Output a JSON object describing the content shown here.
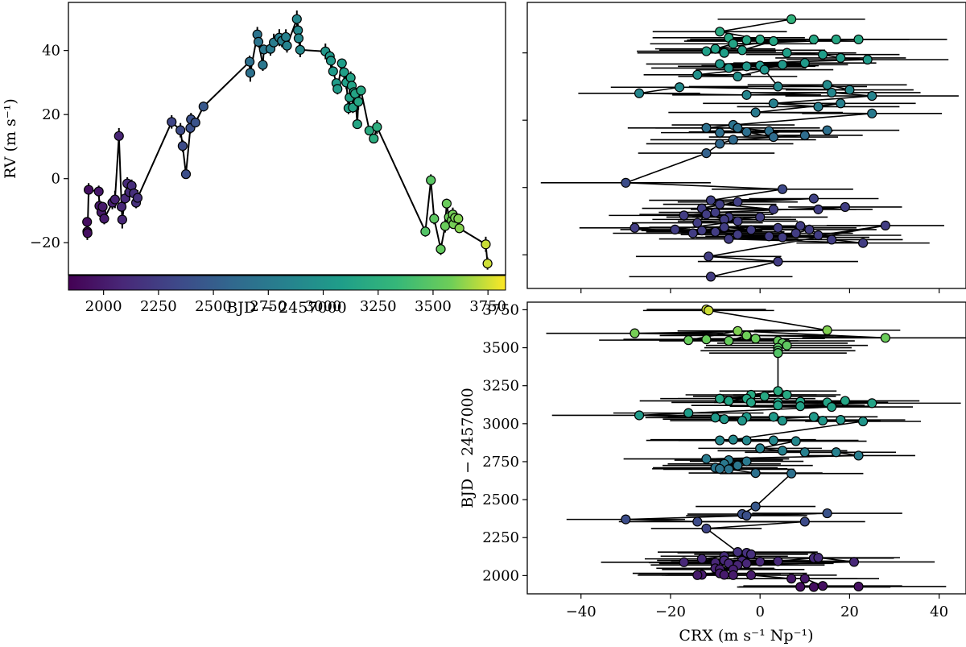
{
  "chart_data": [
    {
      "type": "scatter",
      "name": "rv-vs-time",
      "xlabel": "BJD − 2457000",
      "ylabel": "RV (m s⁻¹)",
      "xlim": [
        1840,
        3830
      ],
      "ylim": [
        -30,
        55
      ],
      "xticks": [
        2000,
        2250,
        2500,
        2750,
        3000,
        3250,
        3500,
        3750
      ],
      "yticks": [
        -20,
        0,
        20,
        40
      ],
      "colorbar": {
        "vmin": 1840,
        "vmax": 3830,
        "colormap": "viridis"
      },
      "points": [
        [
          1925,
          -13.5
        ],
        [
          1926,
          -16.5
        ],
        [
          1927,
          -17
        ],
        [
          1932,
          -3.5
        ],
        [
          1978,
          -4
        ],
        [
          1981,
          -8.5
        ],
        [
          1990,
          -10.5
        ],
        [
          1996,
          -8.8
        ],
        [
          2003,
          -12.5
        ],
        [
          2040,
          -7.5
        ],
        [
          2052,
          -6.5
        ],
        [
          2070,
          13.3
        ],
        [
          2082,
          -8.8
        ],
        [
          2085,
          -12.8
        ],
        [
          2098,
          -6.2
        ],
        [
          2108,
          -1.5
        ],
        [
          2118,
          -4.2
        ],
        [
          2128,
          -2.2
        ],
        [
          2138,
          -4.6
        ],
        [
          2148,
          -7.5
        ],
        [
          2155,
          -6
        ],
        [
          2310,
          17.7
        ],
        [
          2350,
          15.1
        ],
        [
          2360,
          10.2
        ],
        [
          2375,
          1.4
        ],
        [
          2395,
          15.8
        ],
        [
          2398,
          18.5
        ],
        [
          2418,
          17.5
        ],
        [
          2455,
          22.5
        ],
        [
          2665,
          36.5
        ],
        [
          2668,
          33
        ],
        [
          2700,
          45
        ],
        [
          2705,
          42.7
        ],
        [
          2725,
          35.5
        ],
        [
          2730,
          40.3
        ],
        [
          2760,
          40.5
        ],
        [
          2775,
          42.5
        ],
        [
          2800,
          44
        ],
        [
          2812,
          43
        ],
        [
          2830,
          44.2
        ],
        [
          2835,
          41.5
        ],
        [
          2880,
          49.8
        ],
        [
          2885,
          46.3
        ],
        [
          2888,
          43.8
        ],
        [
          2895,
          40.2
        ],
        [
          3010,
          39.7
        ],
        [
          3030,
          38.2
        ],
        [
          3035,
          36.8
        ],
        [
          3045,
          33.5
        ],
        [
          3060,
          29.8
        ],
        [
          3065,
          28
        ],
        [
          3085,
          36
        ],
        [
          3095,
          33.2
        ],
        [
          3105,
          30
        ],
        [
          3115,
          22
        ],
        [
          3120,
          25.3
        ],
        [
          3125,
          31.5
        ],
        [
          3130,
          29
        ],
        [
          3135,
          22.2
        ],
        [
          3140,
          27
        ],
        [
          3145,
          26.5
        ],
        [
          3155,
          17
        ],
        [
          3160,
          24
        ],
        [
          3172,
          27.5
        ],
        [
          3210,
          15
        ],
        [
          3230,
          12.5
        ],
        [
          3245,
          16.1
        ],
        [
          3465,
          -16.5
        ],
        [
          3490,
          -0.5
        ],
        [
          3505,
          -12.5
        ],
        [
          3535,
          -22
        ],
        [
          3555,
          -14.8
        ],
        [
          3562,
          -7.8
        ],
        [
          3572,
          -12
        ],
        [
          3585,
          -13
        ],
        [
          3590,
          -11.2
        ],
        [
          3593,
          -14.2
        ],
        [
          3600,
          -12.2
        ],
        [
          3615,
          -12.5
        ],
        [
          3620,
          -15.5
        ],
        [
          3740,
          -20.5
        ],
        [
          3748,
          -26.5
        ]
      ]
    },
    {
      "type": "scatter",
      "name": "rv-vs-crx",
      "xlabel": "CRX (m s⁻¹ Np⁻¹)",
      "ylabel": "RV (m s⁻¹)",
      "xlim": [
        -52,
        46
      ],
      "ylim": [
        -30,
        55
      ],
      "points": [
        [
          7,
          50
        ],
        [
          -9,
          46.3
        ],
        [
          0,
          44
        ],
        [
          -7,
          44.5
        ],
        [
          -3,
          43.8
        ],
        [
          12,
          44
        ],
        [
          17,
          44
        ],
        [
          22,
          44
        ],
        [
          -6,
          42.7
        ],
        [
          -10,
          41.2
        ],
        [
          3,
          43.5
        ],
        [
          -4,
          40.8
        ],
        [
          -12,
          40.5
        ],
        [
          -8,
          40
        ],
        [
          6,
          40
        ],
        [
          14,
          39.5
        ],
        [
          18,
          38.5
        ],
        [
          24,
          38
        ],
        [
          -9,
          36.7
        ],
        [
          -7,
          35.5
        ],
        [
          -3,
          36
        ],
        [
          0,
          36.2
        ],
        [
          5,
          36.5
        ],
        [
          10,
          37
        ],
        [
          -14,
          33.5
        ],
        [
          -5,
          33
        ],
        [
          1,
          35
        ],
        [
          4,
          30
        ],
        [
          15,
          30.5
        ],
        [
          20,
          29
        ],
        [
          -18,
          29.8
        ],
        [
          -27,
          28
        ],
        [
          -3,
          27.5
        ],
        [
          16,
          28.2
        ],
        [
          25,
          27.2
        ],
        [
          3,
          25
        ],
        [
          13,
          24
        ],
        [
          18,
          25
        ],
        [
          -1,
          22.3
        ],
        [
          25,
          22
        ],
        [
          -6,
          18.6
        ],
        [
          -12,
          17.7
        ],
        [
          -5,
          17.7
        ],
        [
          2,
          16.8
        ],
        [
          15,
          17
        ],
        [
          -9,
          16.3
        ],
        [
          -3,
          16.5
        ],
        [
          3,
          15
        ],
        [
          10,
          15.5
        ],
        [
          -6,
          14.2
        ],
        [
          -9,
          13
        ],
        [
          -12,
          10.2
        ],
        [
          -30,
          1.4
        ],
        [
          5,
          -0.5
        ],
        [
          -11,
          -3.8
        ],
        [
          12,
          -3.3
        ],
        [
          -5,
          -4.3
        ],
        [
          -13,
          -6.2
        ],
        [
          -9,
          -5
        ],
        [
          3,
          -6.5
        ],
        [
          13,
          -6.5
        ],
        [
          19,
          -5.8
        ],
        [
          -10,
          -7.4
        ],
        [
          -17,
          -8.3
        ],
        [
          -7,
          -8.8
        ],
        [
          0,
          -8.8
        ],
        [
          -14,
          -10.5
        ],
        [
          -12,
          -8
        ],
        [
          -8,
          -9.5
        ],
        [
          -5,
          -10
        ],
        [
          -19,
          -12.5
        ],
        [
          -13,
          -12.8
        ],
        [
          -8,
          -11.8
        ],
        [
          -2,
          -12.6
        ],
        [
          4,
          -12
        ],
        [
          9,
          -11.4
        ],
        [
          -28,
          -12
        ],
        [
          -15,
          -13.6
        ],
        [
          -10,
          -13.2
        ],
        [
          -5,
          -14
        ],
        [
          2,
          -14.5
        ],
        [
          8,
          -13.6
        ],
        [
          11,
          -12.5
        ],
        [
          16,
          -15.5
        ],
        [
          23,
          -16.5
        ],
        [
          -7,
          -15.3
        ],
        [
          5,
          -14.8
        ],
        [
          13,
          -14.2
        ],
        [
          28,
          -11.3
        ],
        [
          -11.5,
          -20.5
        ],
        [
          4,
          -22
        ],
        [
          -11,
          -26.5
        ]
      ]
    },
    {
      "type": "scatter",
      "name": "time-vs-crx",
      "xlabel": "CRX (m s⁻¹ Np⁻¹)",
      "ylabel": "BJD − 2457000",
      "xlim": [
        -52,
        46
      ],
      "ylim": [
        1880,
        3800
      ],
      "xticks": [
        -40,
        -20,
        0,
        20,
        40
      ],
      "yticks": [
        2000,
        2250,
        2500,
        2750,
        3000,
        3250,
        3500,
        3750
      ],
      "points": [
        [
          -12,
          3752
        ],
        [
          -11.5,
          3745
        ],
        [
          15,
          3615
        ],
        [
          -28,
          3595
        ],
        [
          28,
          3565
        ],
        [
          -5,
          3610
        ],
        [
          -16,
          3550
        ],
        [
          -12,
          3555
        ],
        [
          -7,
          3545
        ],
        [
          -3,
          3580
        ],
        [
          -1,
          3560
        ],
        [
          4,
          3545
        ],
        [
          5,
          3530
        ],
        [
          6,
          3515
        ],
        [
          4,
          3500
        ],
        [
          4,
          3480
        ],
        [
          4,
          3465
        ],
        [
          4,
          3215
        ],
        [
          -2,
          3190
        ],
        [
          1,
          3180
        ],
        [
          6,
          3190
        ],
        [
          -9,
          3165
        ],
        [
          -3,
          3165
        ],
        [
          -7,
          3150
        ],
        [
          -2,
          3140
        ],
        [
          4,
          3140
        ],
        [
          9,
          3145
        ],
        [
          15,
          3140
        ],
        [
          19,
          3150
        ],
        [
          25,
          3135
        ],
        [
          4,
          3120
        ],
        [
          9,
          3115
        ],
        [
          16,
          3110
        ],
        [
          -16,
          3070
        ],
        [
          -27,
          3055
        ],
        [
          -10,
          3040
        ],
        [
          -8,
          3030
        ],
        [
          -3,
          3045
        ],
        [
          3,
          3045
        ],
        [
          12,
          3045
        ],
        [
          -4,
          3020
        ],
        [
          5,
          3020
        ],
        [
          14,
          3020
        ],
        [
          18,
          3025
        ],
        [
          23,
          3015
        ],
        [
          -6,
          2895
        ],
        [
          -9,
          2890
        ],
        [
          -3,
          2890
        ],
        [
          3,
          2890
        ],
        [
          8,
          2885
        ],
        [
          0,
          2838
        ],
        [
          5,
          2822
        ],
        [
          10,
          2812
        ],
        [
          17,
          2812
        ],
        [
          22,
          2790
        ],
        [
          -12,
          2768
        ],
        [
          -7,
          2760
        ],
        [
          -3,
          2752
        ],
        [
          -8,
          2735
        ],
        [
          -5,
          2725
        ],
        [
          -10,
          2710
        ],
        [
          -9,
          2703
        ],
        [
          -7,
          2700
        ],
        [
          -1,
          2675
        ],
        [
          7,
          2672
        ],
        [
          -1,
          2455
        ],
        [
          -4,
          2405
        ],
        [
          -3,
          2395
        ],
        [
          15,
          2410
        ],
        [
          -30,
          2370
        ],
        [
          -14,
          2355
        ],
        [
          10,
          2355
        ],
        [
          -12,
          2310
        ],
        [
          -5,
          2155
        ],
        [
          -3,
          2150
        ],
        [
          -2,
          2140
        ],
        [
          -8,
          2128
        ],
        [
          -13,
          2110
        ],
        [
          -8,
          2100
        ],
        [
          -4,
          2098
        ],
        [
          -10,
          2085
        ],
        [
          -7,
          2080
        ],
        [
          -3,
          2080
        ],
        [
          -17,
          2088
        ],
        [
          0,
          2092
        ],
        [
          4,
          2095
        ],
        [
          12,
          2115
        ],
        [
          13,
          2118
        ],
        [
          21,
          2090
        ],
        [
          -5,
          2070
        ],
        [
          -10,
          2048
        ],
        [
          -9,
          2042
        ],
        [
          -6,
          2040
        ],
        [
          -13,
          2005
        ],
        [
          -9,
          2015
        ],
        [
          -8,
          2005
        ],
        [
          -14,
          2003
        ],
        [
          -6,
          2003
        ],
        [
          -2,
          2003
        ],
        [
          7,
          1980
        ],
        [
          10,
          1980
        ],
        [
          14,
          1932
        ],
        [
          22,
          1928
        ],
        [
          9,
          1926
        ],
        [
          12,
          1925
        ]
      ]
    }
  ]
}
